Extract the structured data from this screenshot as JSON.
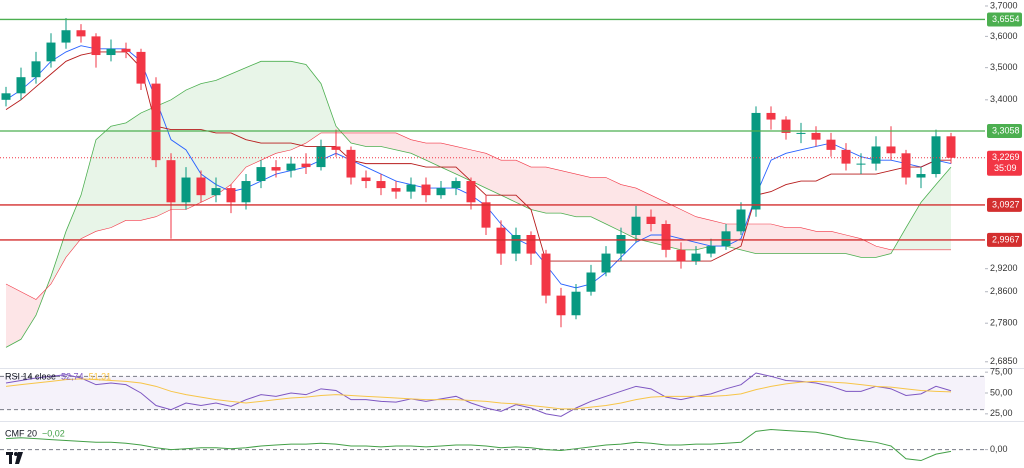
{
  "chart_data": [
    {
      "type": "candlestick",
      "log": true,
      "ylim": [
        2.67,
        3.72
      ],
      "yticks": [
        {
          "value": 3.7,
          "label": "3,7000"
        },
        {
          "value": 3.6,
          "label": "3,6000"
        },
        {
          "value": 3.5,
          "label": "3,5000"
        },
        {
          "value": 3.4,
          "label": "3,4000"
        },
        {
          "value": 2.92,
          "label": "2,9200"
        },
        {
          "value": 2.86,
          "label": "2,8600"
        },
        {
          "value": 2.78,
          "label": "2,7800"
        },
        {
          "value": 2.685,
          "label": "2,6850"
        }
      ],
      "up_color": "#089981",
      "down_color": "#f23645",
      "open": [
        3.4,
        3.42,
        3.47,
        3.52,
        3.58,
        3.62,
        3.6,
        3.54,
        3.56,
        3.55,
        3.45,
        3.22,
        3.1,
        3.17,
        3.12,
        3.14,
        3.1,
        3.16,
        3.2,
        3.19,
        3.21,
        3.2,
        3.26,
        3.25,
        3.17,
        3.16,
        3.14,
        3.13,
        3.15,
        3.12,
        3.14,
        3.16,
        3.1,
        3.03,
        2.96,
        3.01,
        2.96,
        2.85,
        2.8,
        2.86,
        2.91,
        2.96,
        3.01,
        3.06,
        3.04,
        2.97,
        2.94,
        2.96,
        2.98,
        3.02,
        3.08,
        3.36,
        3.34,
        3.3,
        3.3,
        3.28,
        3.25,
        3.21,
        3.21,
        3.26,
        3.24,
        3.17,
        3.18,
        3.29
      ],
      "high": [
        3.44,
        3.5,
        3.55,
        3.61,
        3.66,
        3.64,
        3.61,
        3.59,
        3.58,
        3.56,
        3.47,
        3.24,
        3.2,
        3.19,
        3.17,
        3.15,
        3.18,
        3.22,
        3.22,
        3.23,
        3.24,
        3.28,
        3.31,
        3.26,
        3.19,
        3.18,
        3.16,
        3.17,
        3.17,
        3.16,
        3.17,
        3.17,
        3.12,
        3.05,
        3.03,
        3.02,
        2.97,
        2.87,
        2.88,
        2.93,
        2.98,
        3.03,
        3.09,
        3.08,
        3.05,
        2.99,
        2.98,
        3.0,
        3.04,
        3.1,
        3.38,
        3.38,
        3.35,
        3.33,
        3.32,
        3.3,
        3.27,
        3.24,
        3.29,
        3.32,
        3.25,
        3.2,
        3.31,
        3.3
      ],
      "low": [
        3.38,
        3.4,
        3.45,
        3.5,
        3.56,
        3.58,
        3.5,
        3.52,
        3.53,
        3.43,
        3.2,
        3.0,
        3.08,
        3.1,
        3.1,
        3.07,
        3.08,
        3.14,
        3.17,
        3.17,
        3.18,
        3.19,
        3.23,
        3.15,
        3.14,
        3.12,
        3.11,
        3.11,
        3.1,
        3.11,
        3.12,
        3.08,
        3.01,
        2.93,
        2.94,
        2.93,
        2.83,
        2.77,
        2.79,
        2.85,
        2.9,
        2.94,
        2.99,
        3.02,
        2.95,
        2.92,
        2.93,
        2.95,
        2.97,
        3.01,
        3.06,
        3.31,
        3.28,
        3.27,
        3.26,
        3.23,
        3.19,
        3.18,
        3.19,
        3.22,
        3.15,
        3.14,
        3.17,
        3.21
      ],
      "close": [
        3.42,
        3.47,
        3.52,
        3.58,
        3.62,
        3.6,
        3.54,
        3.56,
        3.55,
        3.45,
        3.22,
        3.1,
        3.17,
        3.12,
        3.14,
        3.1,
        3.16,
        3.2,
        3.19,
        3.21,
        3.2,
        3.26,
        3.25,
        3.17,
        3.16,
        3.14,
        3.13,
        3.15,
        3.12,
        3.14,
        3.16,
        3.1,
        3.03,
        2.96,
        3.01,
        2.96,
        2.85,
        2.8,
        2.86,
        2.91,
        2.96,
        3.01,
        3.06,
        3.04,
        2.97,
        2.94,
        2.96,
        2.98,
        3.02,
        3.08,
        3.36,
        3.34,
        3.3,
        3.3,
        3.28,
        3.25,
        3.21,
        3.21,
        3.26,
        3.24,
        3.17,
        3.18,
        3.29,
        3.2269
      ],
      "cloud": {
        "up_color": "#4caf50",
        "down_color": "#f23645",
        "span_a": [
          2.72,
          2.74,
          2.8,
          2.9,
          3.02,
          3.12,
          3.28,
          3.32,
          3.33,
          3.36,
          3.38,
          3.4,
          3.43,
          3.45,
          3.46,
          3.48,
          3.5,
          3.52,
          3.52,
          3.52,
          3.51,
          3.45,
          3.32,
          3.27,
          3.26,
          3.26,
          3.25,
          3.24,
          3.22,
          3.2,
          3.18,
          3.16,
          3.14,
          3.12,
          3.1,
          3.08,
          3.07,
          3.07,
          3.06,
          3.06,
          3.04,
          3.02,
          3.0,
          2.99,
          2.98,
          2.97,
          2.97,
          2.98,
          2.98,
          2.97,
          2.96,
          2.96,
          2.96,
          2.96,
          2.96,
          2.96,
          2.96,
          2.95,
          2.95,
          2.96,
          3.03,
          3.1,
          3.15,
          3.2
        ],
        "span_b": [
          2.88,
          2.86,
          2.84,
          2.88,
          2.95,
          3.0,
          3.02,
          3.03,
          3.05,
          3.05,
          3.06,
          3.08,
          3.08,
          3.1,
          3.12,
          3.15,
          3.2,
          3.22,
          3.24,
          3.25,
          3.27,
          3.3,
          3.3,
          3.3,
          3.3,
          3.3,
          3.3,
          3.28,
          3.27,
          3.27,
          3.26,
          3.25,
          3.24,
          3.22,
          3.22,
          3.2,
          3.2,
          3.19,
          3.18,
          3.17,
          3.17,
          3.15,
          3.14,
          3.12,
          3.1,
          3.08,
          3.06,
          3.05,
          3.04,
          3.04,
          3.04,
          3.04,
          3.03,
          3.03,
          3.02,
          3.02,
          3.01,
          3.0,
          2.98,
          2.97,
          2.97,
          2.97,
          2.97,
          2.97
        ]
      },
      "overlays": [
        {
          "color": "#2962ff",
          "values": [
            3.4,
            3.43,
            3.47,
            3.52,
            3.55,
            3.57,
            3.56,
            3.56,
            3.56,
            3.52,
            3.4,
            3.28,
            3.25,
            3.18,
            3.15,
            3.13,
            3.14,
            3.16,
            3.18,
            3.19,
            3.2,
            3.22,
            3.24,
            3.22,
            3.2,
            3.18,
            3.16,
            3.15,
            3.14,
            3.14,
            3.14,
            3.12,
            3.09,
            3.04,
            3.0,
            2.98,
            2.93,
            2.88,
            2.87,
            2.88,
            2.91,
            2.95,
            2.99,
            3.01,
            3.01,
            3.0,
            2.99,
            2.98,
            2.98,
            3.0,
            3.12,
            3.22,
            3.24,
            3.25,
            3.26,
            3.27,
            3.25,
            3.23,
            3.22,
            3.22,
            3.21,
            3.2,
            3.22,
            3.21
          ]
        },
        {
          "color": "#b71c1c",
          "values": [
            3.37,
            3.4,
            3.44,
            3.48,
            3.52,
            3.54,
            3.55,
            3.55,
            3.55,
            3.5,
            3.32,
            3.31,
            3.31,
            3.31,
            3.3,
            3.3,
            3.28,
            3.27,
            3.27,
            3.27,
            3.26,
            3.26,
            3.26,
            3.22,
            3.21,
            3.21,
            3.21,
            3.21,
            3.2,
            3.2,
            3.2,
            3.16,
            3.12,
            3.12,
            3.12,
            3.08,
            2.94,
            2.94,
            2.94,
            2.94,
            2.94,
            2.94,
            2.94,
            2.94,
            2.94,
            2.94,
            2.94,
            2.94,
            2.96,
            2.98,
            3.12,
            3.13,
            3.15,
            3.16,
            3.16,
            3.18,
            3.18,
            3.18,
            3.18,
            3.19,
            3.2,
            3.2,
            3.22,
            3.22
          ]
        }
      ],
      "levels": [
        {
          "value": 3.6554,
          "label": "3,6554",
          "color": "#4caf50"
        },
        {
          "value": 3.3058,
          "label": "3,3058",
          "color": "#4caf50"
        },
        {
          "value": 3.0927,
          "label": "3,0927",
          "color": "#d32f2f"
        },
        {
          "value": 2.9967,
          "label": "2,9967",
          "color": "#d32f2f"
        }
      ],
      "last_price": {
        "value": 3.2269,
        "label": "3,2269",
        "countdown": "35:09",
        "color": "#f23645"
      }
    },
    {
      "type": "line",
      "label": "RSI 14 close",
      "ylim": [
        20,
        80
      ],
      "band": [
        30,
        70
      ],
      "yticks": [
        {
          "value": 75,
          "label": "75,00"
        },
        {
          "value": 50,
          "label": "50,00"
        },
        {
          "value": 25,
          "label": "25,00"
        }
      ],
      "series": [
        {
          "color": "#7e57c2",
          "value_label": "52,74",
          "values": [
            62,
            65,
            68,
            70,
            72,
            68,
            60,
            62,
            60,
            50,
            35,
            30,
            38,
            35,
            38,
            34,
            42,
            48,
            46,
            50,
            48,
            55,
            53,
            42,
            42,
            40,
            39,
            43,
            40,
            43,
            46,
            38,
            32,
            28,
            36,
            32,
            25,
            22,
            32,
            40,
            46,
            52,
            58,
            55,
            45,
            42,
            46,
            49,
            55,
            60,
            74,
            70,
            65,
            64,
            62,
            58,
            52,
            52,
            58,
            55,
            47,
            49,
            58,
            52.74
          ]
        },
        {
          "color": "#f7c548",
          "value_label": "51,31",
          "values": [
            58,
            60,
            62,
            64,
            66,
            67,
            66,
            65,
            64,
            62,
            58,
            52,
            48,
            45,
            42,
            40,
            38,
            40,
            42,
            44,
            45,
            47,
            48,
            47,
            46,
            45,
            44,
            43,
            42,
            42,
            42,
            41,
            40,
            38,
            37,
            35,
            33,
            31,
            31,
            33,
            35,
            38,
            42,
            45,
            46,
            46,
            46,
            46,
            47,
            49,
            54,
            58,
            61,
            63,
            64,
            63,
            62,
            60,
            58,
            57,
            55,
            53,
            52,
            51.31
          ]
        }
      ]
    },
    {
      "type": "line",
      "label": "CMF 20",
      "ylim": [
        -0.18,
        0.27
      ],
      "yticks": [
        {
          "value": 0,
          "label": "0,00"
        }
      ],
      "series": [
        {
          "color": "#43a047",
          "value_label": "−0,02",
          "values": [
            0.12,
            0.13,
            0.12,
            0.11,
            0.1,
            0.09,
            0.08,
            0.08,
            0.07,
            0.05,
            0.02,
            0.0,
            0.01,
            0.02,
            0.02,
            0.01,
            0.02,
            0.04,
            0.05,
            0.06,
            0.06,
            0.07,
            0.06,
            0.04,
            0.04,
            0.03,
            0.04,
            0.04,
            0.03,
            0.04,
            0.05,
            0.05,
            0.04,
            0.02,
            0.03,
            0.02,
            0.0,
            -0.01,
            0.01,
            0.03,
            0.05,
            0.06,
            0.08,
            0.07,
            0.05,
            0.05,
            0.06,
            0.06,
            0.07,
            0.08,
            0.2,
            0.22,
            0.21,
            0.2,
            0.19,
            0.16,
            0.12,
            0.1,
            0.08,
            0.04,
            -0.1,
            -0.12,
            -0.05,
            -0.02
          ]
        }
      ]
    }
  ]
}
